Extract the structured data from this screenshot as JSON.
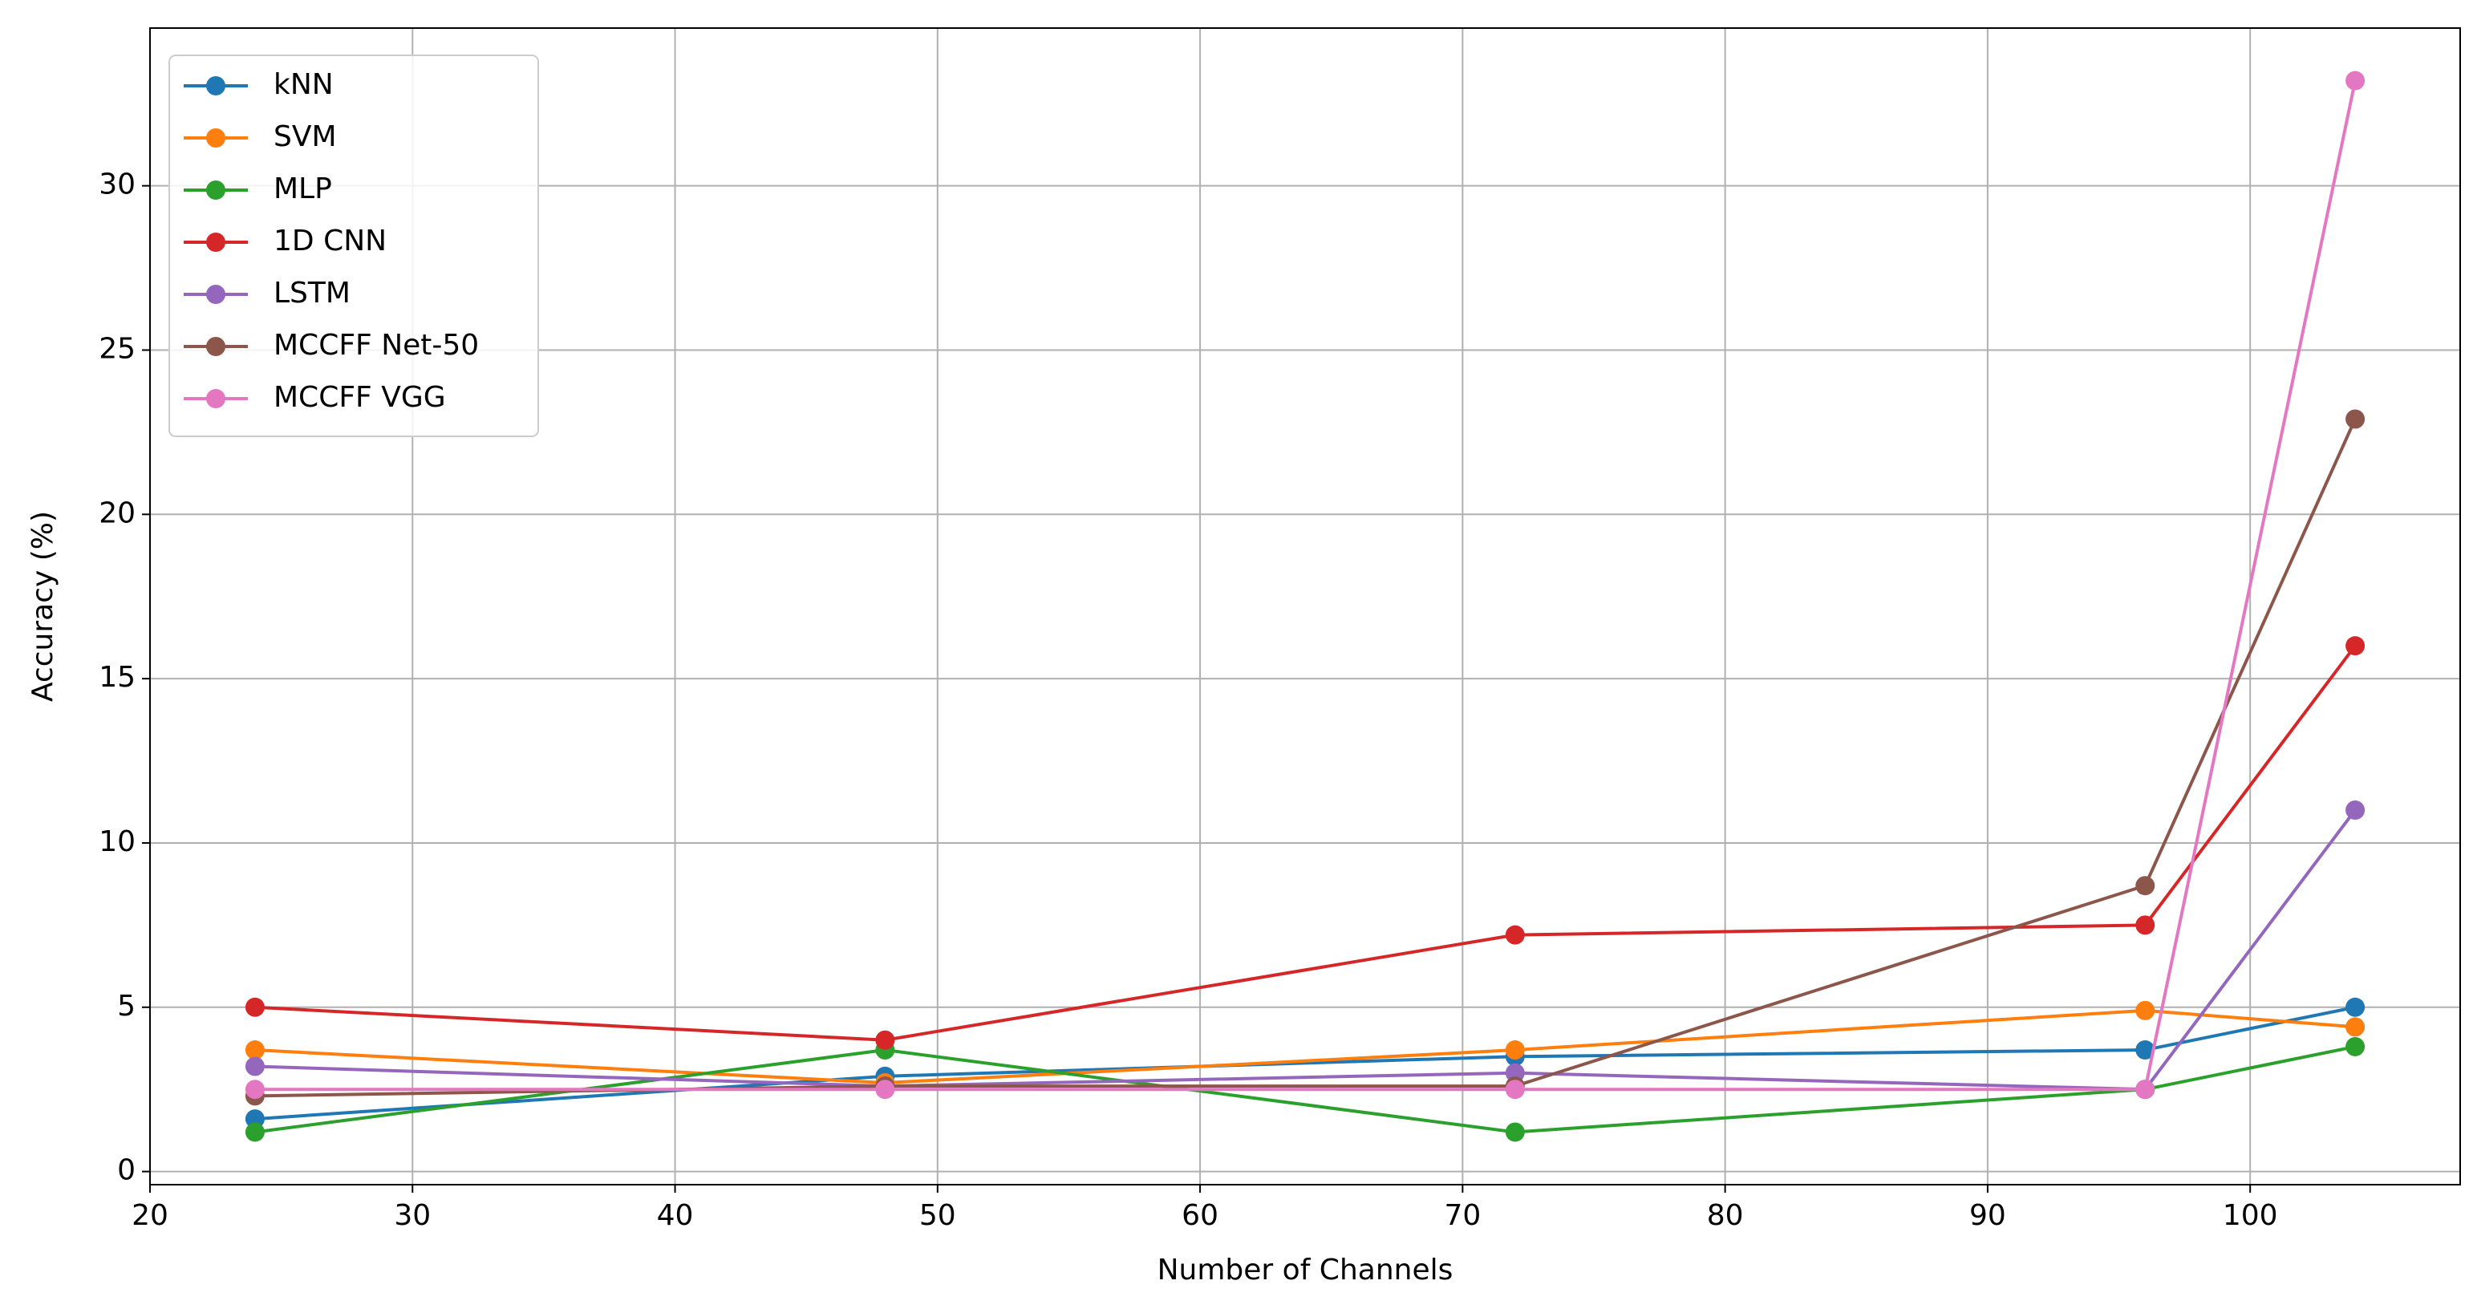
{
  "chart_data": {
    "type": "line",
    "x_label": "Number of Channels",
    "y_label": "Accuracy (%)",
    "x": [
      24,
      48,
      72,
      96,
      104
    ],
    "series": [
      {
        "name": "kNN",
        "color": "#1f77b4",
        "values": [
          1.6,
          2.9,
          3.5,
          3.7,
          5.0
        ]
      },
      {
        "name": "SVM",
        "color": "#ff7f0e",
        "values": [
          3.7,
          2.7,
          3.7,
          4.9,
          4.4
        ]
      },
      {
        "name": "MLP",
        "color": "#2ca02c",
        "values": [
          1.2,
          3.7,
          1.2,
          2.5,
          3.8
        ]
      },
      {
        "name": "1D CNN",
        "color": "#d62728",
        "values": [
          5.0,
          4.0,
          7.2,
          7.5,
          16.0
        ]
      },
      {
        "name": "LSTM",
        "color": "#9467bd",
        "values": [
          3.2,
          2.6,
          3.0,
          2.5,
          11.0
        ]
      },
      {
        "name": "MCCFF Net-50",
        "color": "#8c564b",
        "values": [
          2.3,
          2.6,
          2.6,
          8.7,
          22.9
        ]
      },
      {
        "name": "MCCFF VGG",
        "color": "#e377c2",
        "values": [
          2.5,
          2.5,
          2.5,
          2.5,
          33.2
        ]
      }
    ],
    "xlim": [
      20,
      108
    ],
    "xticks": [
      20,
      30,
      40,
      50,
      60,
      70,
      80,
      90,
      100
    ],
    "ylim": [
      -0.4,
      34.8
    ],
    "yticks": [
      0,
      5,
      10,
      15,
      20,
      25,
      30
    ],
    "grid": true,
    "legend": "upper left"
  }
}
